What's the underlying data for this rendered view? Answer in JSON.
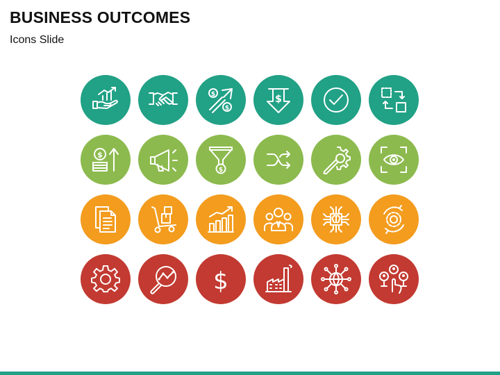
{
  "slide": {
    "title": "BUSINESS OUTCOMES",
    "subtitle": "Icons Slide"
  },
  "colors": {
    "teal": "#21a186",
    "green": "#8cba4e",
    "orange": "#f39c1e",
    "red": "#c23a31",
    "footer": "#21a186"
  },
  "icons": [
    [
      "hand-growth-chart-icon",
      "handshake-icon",
      "dollar-exchange-arrows-icon",
      "dollar-down-arrow-icon",
      "checkmark-circle-icon",
      "swap-boxes-icon"
    ],
    [
      "coins-up-arrow-icon",
      "megaphone-icon",
      "dollar-funnel-icon",
      "shuffle-arrows-icon",
      "gear-wrench-icon",
      "eye-focus-icon"
    ],
    [
      "documents-icon",
      "hand-truck-boxes-icon",
      "bar-chart-growth-icon",
      "team-people-icon",
      "brain-chip-icon",
      "gear-cycle-icon"
    ],
    [
      "gear-icon",
      "magnifier-analytics-icon",
      "dollar-sign-icon",
      "factory-icon",
      "globe-network-icon",
      "users-network-touch-icon"
    ]
  ]
}
